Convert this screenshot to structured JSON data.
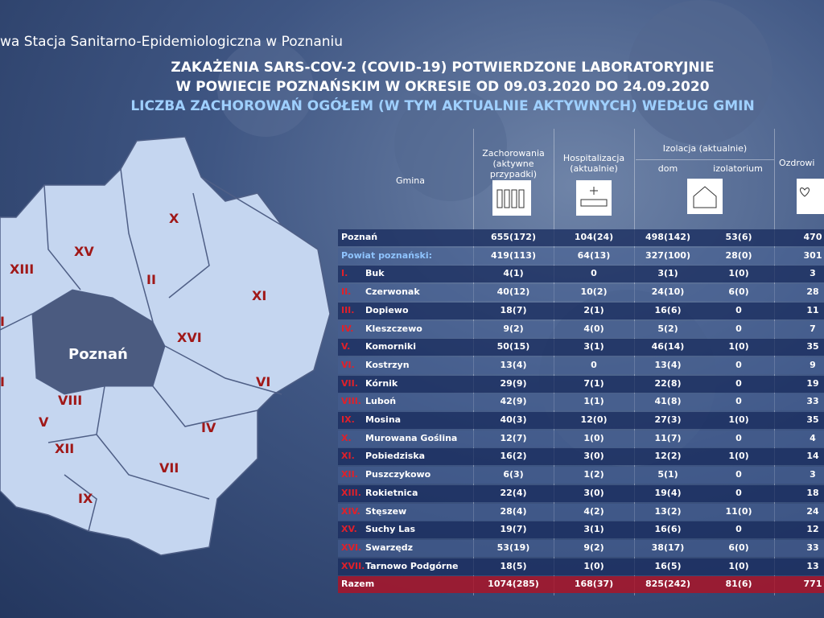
{
  "header": {
    "organization": "wa Stacja Sanitarno-Epidemiologiczna w Poznaniu",
    "title_lines": [
      "ZAKAŻENIA SARS-COV-2 (COVID-19) POTWIERDZONE LABORATORYJNIE",
      "W POWIECIE POZNAŃSKIM W OKRESIE OD 09.03.2020 DO 24.09.2020",
      "LICZBA ZACHOROWAŃ OGÓŁEM (W TYM AKTUALNIE AKTYWNYCH) WEDŁUG GMIN"
    ]
  },
  "map": {
    "labels": [
      "X",
      "XV",
      "XIII",
      "II",
      "XI",
      "XVI",
      "Poznań",
      "VI",
      "VIII",
      "V",
      "IV",
      "XII",
      "VII",
      "IX",
      "I",
      "I"
    ]
  },
  "table": {
    "columns": {
      "gmina": "Gmina",
      "cases": "Zachorowania (aktywne przypadki)",
      "hospital": "Hospitalizacja (aktualnie)",
      "isolation": "Izolacja (aktualnie)",
      "home": "dom",
      "isolatorium": "izolatorium",
      "recovered": "Ozdrowi"
    },
    "rows": [
      {
        "name": "Poznań",
        "values": [
          "655(172)",
          "104(24)",
          "498(142)",
          "53(6)",
          "470"
        ]
      },
      {
        "name": "Powiat poznański:",
        "values": [
          "419(113)",
          "64(13)",
          "327(100)",
          "28(0)",
          "301"
        ]
      },
      {
        "num": "I.",
        "name": "Buk",
        "values": [
          "4(1)",
          "0",
          "3(1)",
          "1(0)",
          "3"
        ]
      },
      {
        "num": "II.",
        "name": "Czerwonak",
        "values": [
          "40(12)",
          "10(2)",
          "24(10)",
          "6(0)",
          "28"
        ]
      },
      {
        "num": "III.",
        "name": "Dopiewo",
        "values": [
          "18(7)",
          "2(1)",
          "16(6)",
          "0",
          "11"
        ]
      },
      {
        "num": "IV.",
        "name": "Kleszczewo",
        "values": [
          "9(2)",
          "4(0)",
          "5(2)",
          "0",
          "7"
        ]
      },
      {
        "num": "V.",
        "name": "Komorniki",
        "values": [
          "50(15)",
          "3(1)",
          "46(14)",
          "1(0)",
          "35"
        ]
      },
      {
        "num": "VI.",
        "name": "Kostrzyn",
        "values": [
          "13(4)",
          "0",
          "13(4)",
          "0",
          "9"
        ]
      },
      {
        "num": "VII.",
        "name": "Kórnik",
        "values": [
          "29(9)",
          "7(1)",
          "22(8)",
          "0",
          "19"
        ]
      },
      {
        "num": "VIII.",
        "name": "Luboń",
        "values": [
          "42(9)",
          "1(1)",
          "41(8)",
          "0",
          "33"
        ]
      },
      {
        "num": "IX.",
        "name": "Mosina",
        "values": [
          "40(3)",
          "12(0)",
          "27(3)",
          "1(0)",
          "35"
        ]
      },
      {
        "num": "X.",
        "name": "Murowana Goślina",
        "values": [
          "12(7)",
          "1(0)",
          "11(7)",
          "0",
          "4"
        ]
      },
      {
        "num": "XI.",
        "name": "Pobiedziska",
        "values": [
          "16(2)",
          "3(0)",
          "12(2)",
          "1(0)",
          "14"
        ]
      },
      {
        "num": "XII.",
        "name": "Puszczykowo",
        "values": [
          "6(3)",
          "1(2)",
          "5(1)",
          "0",
          "3"
        ]
      },
      {
        "num": "XIII.",
        "name": "Rokietnica",
        "values": [
          "22(4)",
          "3(0)",
          "19(4)",
          "0",
          "18"
        ]
      },
      {
        "num": "XIV.",
        "name": "Stęszew",
        "values": [
          "28(4)",
          "4(2)",
          "13(2)",
          "11(0)",
          "24"
        ]
      },
      {
        "num": "XV.",
        "name": "Suchy Las",
        "values": [
          "19(7)",
          "3(1)",
          "16(6)",
          "0",
          "12"
        ]
      },
      {
        "num": "XVI.",
        "name": "Swarzędz",
        "values": [
          "53(19)",
          "9(2)",
          "38(17)",
          "6(0)",
          "33"
        ]
      },
      {
        "num": "XVII.",
        "name": "Tarnowo Podgórne",
        "values": [
          "18(5)",
          "1(0)",
          "16(5)",
          "1(0)",
          "13"
        ]
      },
      {
        "name": "Razem",
        "values": [
          "1074(285)",
          "168(37)",
          "825(242)",
          "81(6)",
          "771"
        ]
      }
    ]
  }
}
